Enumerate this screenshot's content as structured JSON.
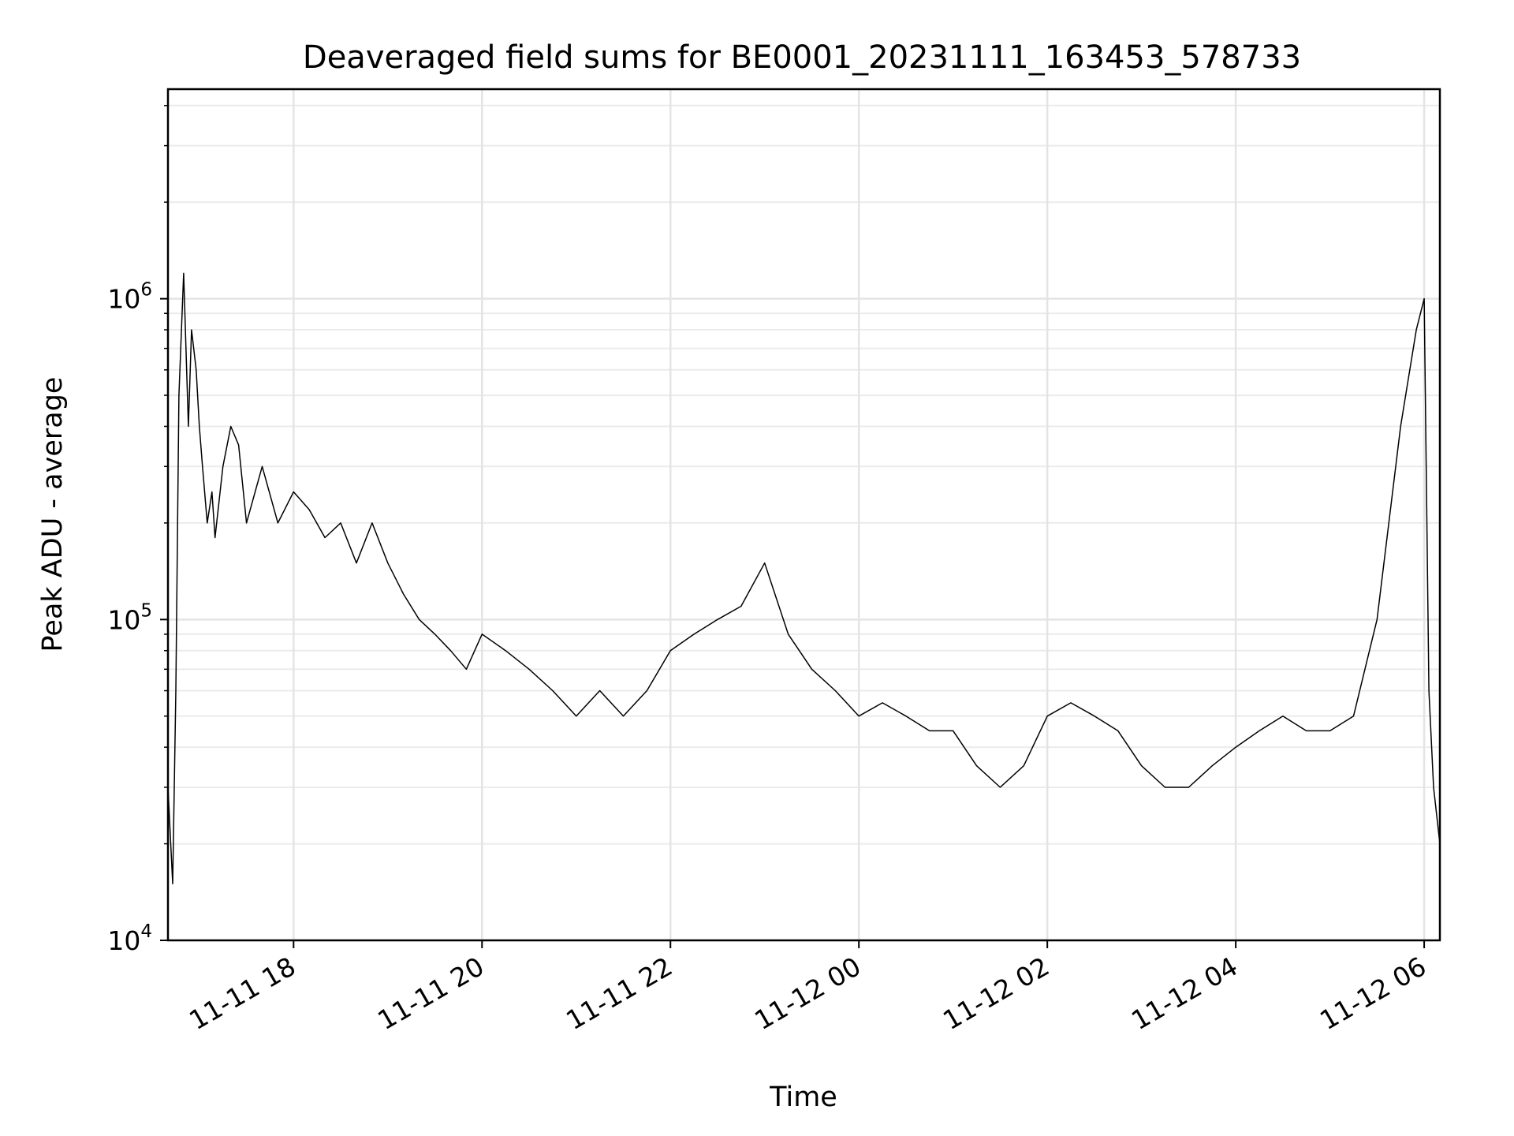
{
  "chart_data": {
    "type": "line",
    "title": "Deaveraged field sums for BE0001_20231111_163453_578733",
    "xlabel": "Time",
    "ylabel": "Peak ADU - average",
    "x_axis_kind": "datetime",
    "xlim": [
      "2023-11-11 16:40",
      "2023-11-12 06:10"
    ],
    "ylim": [
      10000,
      4500000
    ],
    "yscale": "log",
    "grid": true,
    "legend": "none",
    "line_color": "#000000",
    "x_ticks": [
      {
        "value": "2023-11-11 18:00",
        "label": "11-11 18"
      },
      {
        "value": "2023-11-11 20:00",
        "label": "11-11 20"
      },
      {
        "value": "2023-11-11 22:00",
        "label": "11-11 22"
      },
      {
        "value": "2023-11-12 00:00",
        "label": "11-12 00"
      },
      {
        "value": "2023-11-12 02:00",
        "label": "11-12 02"
      },
      {
        "value": "2023-11-12 04:00",
        "label": "11-12 04"
      },
      {
        "value": "2023-11-12 06:00",
        "label": "11-12 06"
      }
    ],
    "y_ticks": [
      {
        "value": 10000,
        "base": "10",
        "exp": "4"
      },
      {
        "value": 100000,
        "base": "10",
        "exp": "5"
      },
      {
        "value": 1000000,
        "base": "10",
        "exp": "6"
      }
    ],
    "series": [
      {
        "x": [
          "2023-11-11 16:40",
          "2023-11-11 16:43",
          "2023-11-11 16:45",
          "2023-11-11 16:47",
          "2023-11-11 16:50",
          "2023-11-11 16:53",
          "2023-11-11 16:55",
          "2023-11-11 16:58",
          "2023-11-11 17:00",
          "2023-11-11 17:02",
          "2023-11-11 17:05",
          "2023-11-11 17:08",
          "2023-11-11 17:10",
          "2023-11-11 17:15",
          "2023-11-11 17:20",
          "2023-11-11 17:25",
          "2023-11-11 17:30",
          "2023-11-11 17:40",
          "2023-11-11 17:50",
          "2023-11-11 18:00",
          "2023-11-11 18:10",
          "2023-11-11 18:20",
          "2023-11-11 18:30",
          "2023-11-11 18:40",
          "2023-11-11 18:50",
          "2023-11-11 19:00",
          "2023-11-11 19:10",
          "2023-11-11 19:20",
          "2023-11-11 19:30",
          "2023-11-11 19:40",
          "2023-11-11 19:50",
          "2023-11-11 20:00",
          "2023-11-11 20:15",
          "2023-11-11 20:30",
          "2023-11-11 20:45",
          "2023-11-11 21:00",
          "2023-11-11 21:15",
          "2023-11-11 21:30",
          "2023-11-11 21:45",
          "2023-11-11 22:00",
          "2023-11-11 22:15",
          "2023-11-11 22:30",
          "2023-11-11 22:45",
          "2023-11-11 23:00",
          "2023-11-11 23:15",
          "2023-11-11 23:30",
          "2023-11-11 23:45",
          "2023-11-12 00:00",
          "2023-11-12 00:15",
          "2023-11-12 00:30",
          "2023-11-12 00:45",
          "2023-11-12 01:00",
          "2023-11-12 01:15",
          "2023-11-12 01:30",
          "2023-11-12 01:45",
          "2023-11-12 02:00",
          "2023-11-12 02:15",
          "2023-11-12 02:30",
          "2023-11-12 02:45",
          "2023-11-12 03:00",
          "2023-11-12 03:15",
          "2023-11-12 03:30",
          "2023-11-12 03:45",
          "2023-11-12 04:00",
          "2023-11-12 04:15",
          "2023-11-12 04:30",
          "2023-11-12 04:45",
          "2023-11-12 05:00",
          "2023-11-12 05:15",
          "2023-11-12 05:30",
          "2023-11-12 05:45",
          "2023-11-12 05:55",
          "2023-11-12 06:00",
          "2023-11-12 06:03",
          "2023-11-12 06:06",
          "2023-11-12 06:10"
        ],
        "y": [
          30000,
          15000,
          60000,
          500000,
          1200000,
          400000,
          800000,
          600000,
          400000,
          300000,
          200000,
          250000,
          180000,
          300000,
          400000,
          350000,
          200000,
          300000,
          200000,
          250000,
          220000,
          180000,
          200000,
          150000,
          200000,
          150000,
          120000,
          100000,
          90000,
          80000,
          70000,
          90000,
          80000,
          70000,
          60000,
          50000,
          60000,
          50000,
          60000,
          80000,
          90000,
          100000,
          110000,
          150000,
          90000,
          70000,
          60000,
          50000,
          55000,
          50000,
          45000,
          45000,
          35000,
          30000,
          35000,
          50000,
          55000,
          50000,
          45000,
          35000,
          30000,
          30000,
          35000,
          40000,
          45000,
          50000,
          45000,
          45000,
          50000,
          100000,
          400000,
          800000,
          1000000,
          60000,
          30000,
          20000
        ]
      }
    ]
  }
}
